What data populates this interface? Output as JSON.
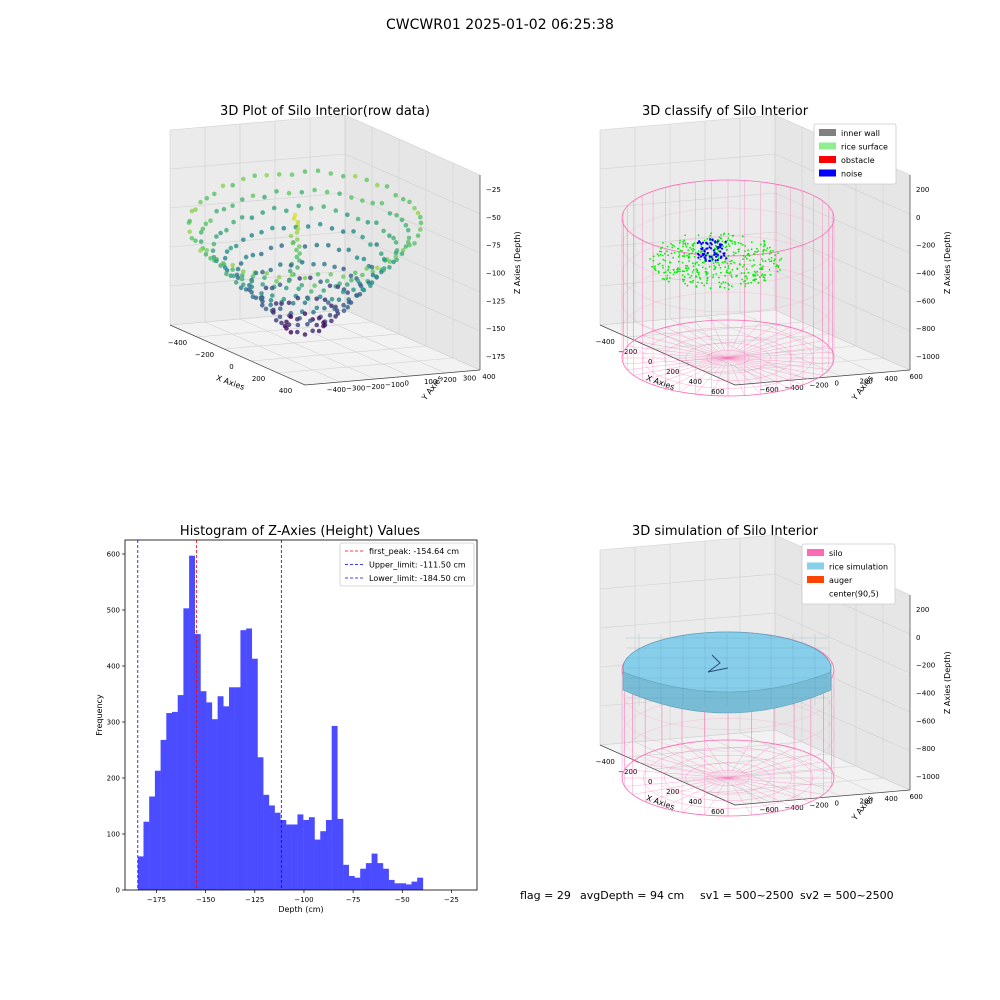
{
  "figure": {
    "suptitle": "CWCWR01 2025-01-02 06:25:38",
    "footer": {
      "flag": "flag = 29",
      "avg_depth": "avgDepth = 94 cm",
      "sv1": "sv1 = 500~2500",
      "sv2": "sv2 = 500~2500"
    }
  },
  "chart_data": [
    {
      "type": "scatter3d",
      "title": "3D Plot of Silo Interior(row data)",
      "xlabel": "X Axies",
      "ylabel": "Y Axies",
      "zlabel": "Z Axies (Depth)",
      "x_ticks": [
        "−400",
        "−200",
        "0",
        "200",
        "400"
      ],
      "y_ticks": [
        "−400",
        "−300",
        "−200",
        "−100",
        "0",
        "100",
        "200",
        "300",
        "400"
      ],
      "z_ticks": [
        "−25",
        "−50",
        "−75",
        "−100",
        "−125",
        "−150",
        "−175"
      ],
      "zlim": [
        -190,
        -15
      ],
      "colormap": "viridis",
      "grid": true
    },
    {
      "type": "scatter3d",
      "title": "3D classify of Silo Interior",
      "xlabel": "X Axies",
      "ylabel": "Y Axies",
      "zlabel": "Z Axies (Depth)",
      "x_ticks": [
        "−400",
        "−200",
        "0",
        "200",
        "400",
        "600"
      ],
      "y_ticks": [
        "−600",
        "−400",
        "−200",
        "0",
        "200",
        "400",
        "600"
      ],
      "z_ticks": [
        "200",
        "0",
        "−200",
        "−400",
        "−600",
        "−800",
        "−1000"
      ],
      "legend": [
        {
          "label": "inner wall",
          "color": "#808080"
        },
        {
          "label": "rice surface",
          "color": "#90ee90"
        },
        {
          "label": "obstacle",
          "color": "#ff0000"
        },
        {
          "label": "noise",
          "color": "#0000ff"
        }
      ],
      "legend_position": "top-right",
      "grid": true
    },
    {
      "type": "bar",
      "title": "Histogram of Z-Axies (Height) Values",
      "xlabel": "Depth (cm)",
      "ylabel": "Frequency",
      "xlim": [
        -191,
        -12
      ],
      "ylim": [
        0,
        625
      ],
      "x_ticks": [
        -175,
        -150,
        -125,
        -100,
        -75,
        -50,
        -25
      ],
      "y_ticks": [
        0,
        100,
        200,
        300,
        400,
        500,
        600
      ],
      "bin_start": -184.5,
      "bin_width": 2.9,
      "values": [
        60,
        122,
        167,
        213,
        268,
        316,
        318,
        348,
        503,
        597,
        457,
        355,
        335,
        305,
        346,
        328,
        362,
        362,
        464,
        467,
        413,
        237,
        170,
        151,
        138,
        125,
        117,
        117,
        135,
        125,
        130,
        90,
        105,
        125,
        293,
        127,
        45,
        25,
        22,
        38,
        48,
        65,
        48,
        38,
        18,
        12,
        12,
        10,
        15,
        22
      ],
      "bar_color": "#4b4bff",
      "vlines": [
        {
          "label": "first_peak: -154.64 cm",
          "x": -154.64,
          "color": "#ff0000"
        },
        {
          "label": "Upper_limit: -111.50 cm",
          "x": -111.5,
          "color": "#0000ff"
        },
        {
          "label": "Lower_limit: -184.50 cm",
          "x": -184.5,
          "color": "#0000ff"
        }
      ],
      "legend_position": "top-right"
    },
    {
      "type": "surface3d",
      "title": "3D simulation of Silo Interior",
      "xlabel": "X Axies",
      "ylabel": "Y Axies",
      "zlabel": "Z Axies (Depth)",
      "x_ticks": [
        "−400",
        "−200",
        "0",
        "200",
        "400",
        "600"
      ],
      "y_ticks": [
        "−600",
        "−400",
        "−200",
        "0",
        "200",
        "400",
        "600"
      ],
      "z_ticks": [
        "200",
        "0",
        "−200",
        "−400",
        "−600",
        "−800",
        "−1000"
      ],
      "legend": [
        {
          "label": "silo",
          "color": "#ff69b4"
        },
        {
          "label": "rice simulation",
          "color": "#87ceeb"
        },
        {
          "label": "auger",
          "color": "#ff4500"
        },
        {
          "label": "center(90,5)",
          "color": ""
        }
      ],
      "legend_position": "top-right",
      "grid": true
    }
  ]
}
